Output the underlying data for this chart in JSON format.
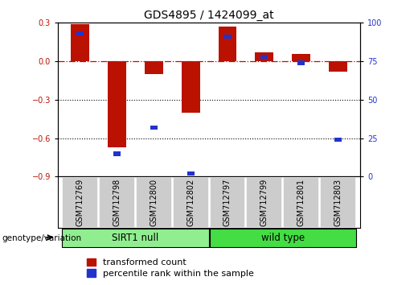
{
  "title": "GDS4895 / 1424099_at",
  "samples": [
    "GSM712769",
    "GSM712798",
    "GSM712800",
    "GSM712802",
    "GSM712797",
    "GSM712799",
    "GSM712801",
    "GSM712803"
  ],
  "transformed_count": [
    0.29,
    -0.67,
    -0.1,
    -0.4,
    0.27,
    0.07,
    0.06,
    -0.08
  ],
  "percentile_rank": [
    93,
    15,
    32,
    2,
    91,
    78,
    74,
    24
  ],
  "groups": [
    {
      "label": "SIRT1 null",
      "indices": [
        0,
        1,
        2,
        3
      ],
      "color": "#90EE90"
    },
    {
      "label": "wild type",
      "indices": [
        4,
        5,
        6,
        7
      ],
      "color": "#44DD44"
    }
  ],
  "group_label": "genotype/variation",
  "ylim_left": [
    -0.9,
    0.3
  ],
  "ylim_right": [
    0,
    100
  ],
  "yticks_left": [
    -0.9,
    -0.6,
    -0.3,
    0.0,
    0.3
  ],
  "yticks_right": [
    0,
    25,
    50,
    75,
    100
  ],
  "bar_width": 0.5,
  "red_color": "#BB1100",
  "blue_color": "#2233CC",
  "legend_items": [
    "transformed count",
    "percentile rank within the sample"
  ],
  "sample_box_color": "#CCCCCC",
  "tick_label_fontsize": 7,
  "title_fontsize": 10
}
